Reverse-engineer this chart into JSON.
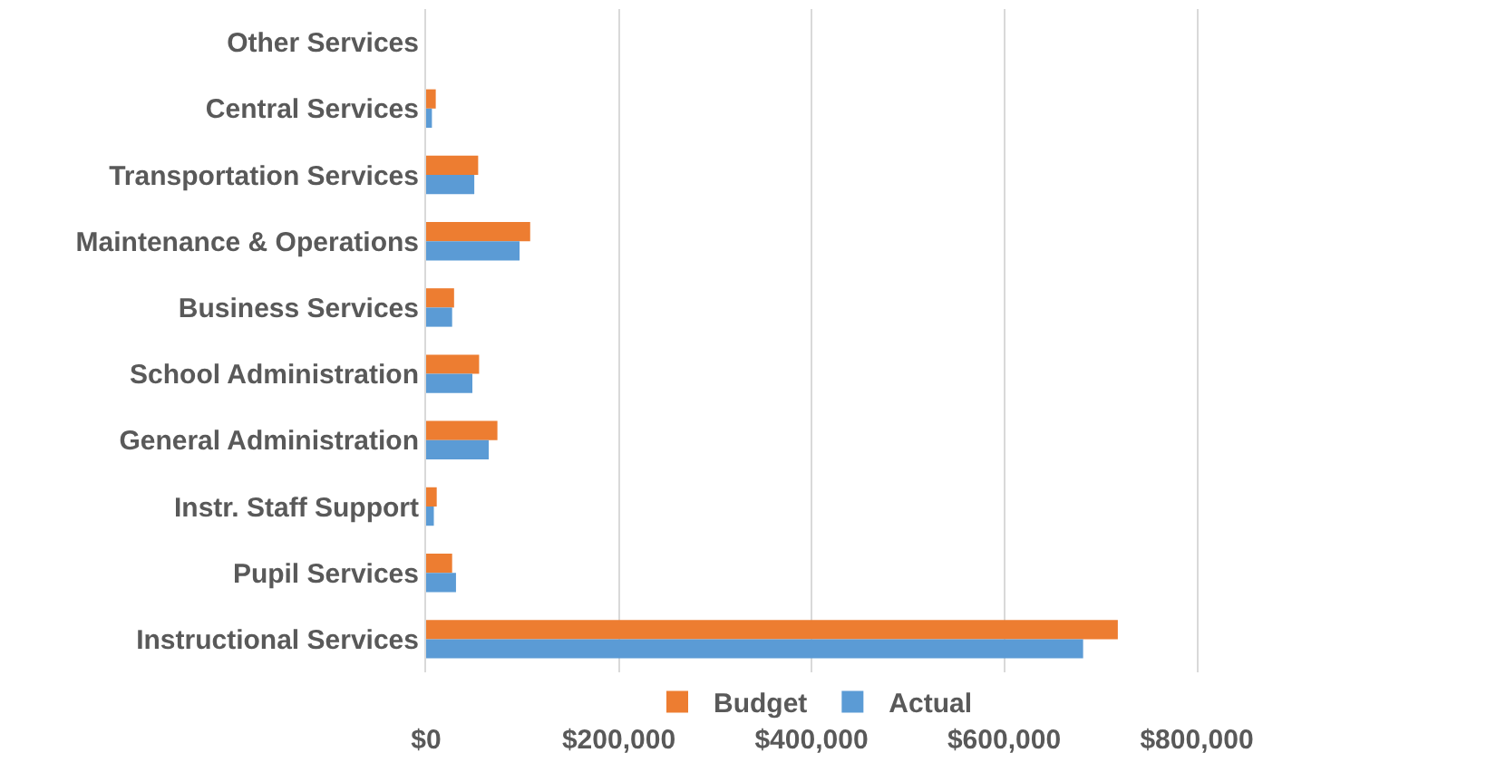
{
  "chart_data": {
    "type": "bar",
    "orientation": "horizontal",
    "categories": [
      "Other Services",
      "Central Services",
      "Transportation Services",
      "Maintenance & Operations",
      "Business Services",
      "School Administration",
      "General Administration",
      "Instr. Staff Support",
      "Pupil Services",
      "Instructional Services"
    ],
    "series": [
      {
        "name": "Budget",
        "color": "#ed7d31",
        "values": [
          0,
          10000,
          54000,
          108000,
          29000,
          55000,
          74000,
          11000,
          27000,
          718000
        ]
      },
      {
        "name": "Actual",
        "color": "#5b9bd5",
        "values": [
          0,
          6000,
          50000,
          97000,
          27000,
          48000,
          65000,
          8000,
          31000,
          682000
        ]
      }
    ],
    "xlim": [
      0,
      800000
    ],
    "xticks": [
      {
        "value": 0,
        "label": "$0"
      },
      {
        "value": 200000,
        "label": "$200,000"
      },
      {
        "value": 400000,
        "label": "$400,000"
      },
      {
        "value": 600000,
        "label": "$600,000"
      },
      {
        "value": 800000,
        "label": "$800,000"
      }
    ],
    "grid": "x",
    "legend": "bottom"
  }
}
